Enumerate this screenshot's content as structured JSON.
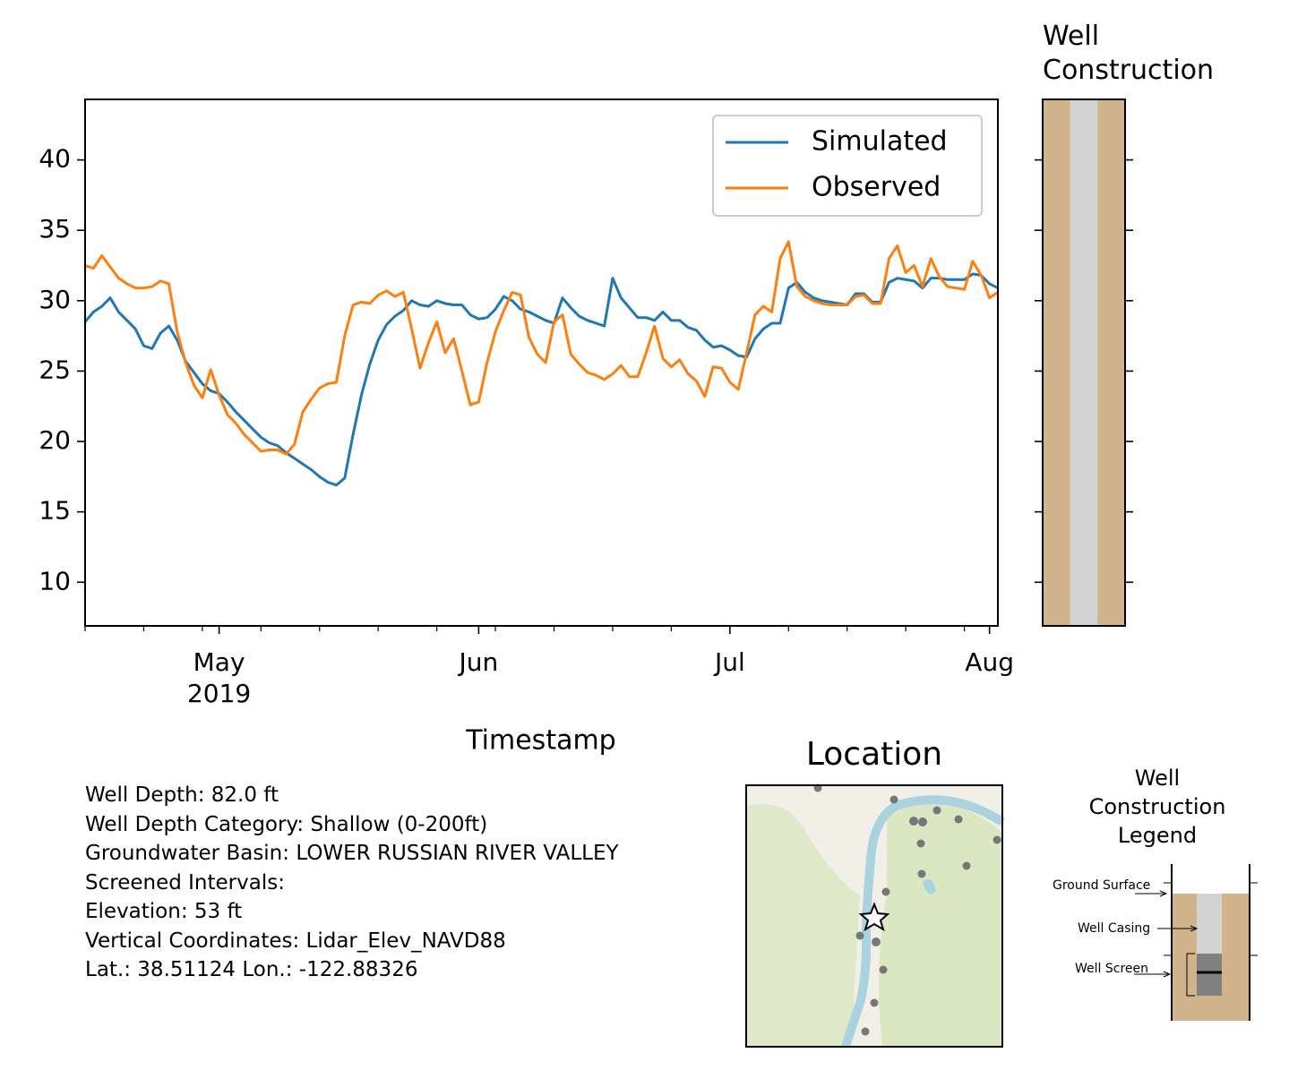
{
  "chart_data": [
    {
      "type": "line",
      "xlabel": "Timestamp",
      "x": [
        "2019-04-15",
        "2019-04-16",
        "2019-04-17",
        "2019-04-18",
        "2019-04-19",
        "2019-04-20",
        "2019-04-21",
        "2019-04-22",
        "2019-04-23",
        "2019-04-24",
        "2019-04-25",
        "2019-04-26",
        "2019-04-27",
        "2019-04-28",
        "2019-04-29",
        "2019-04-30",
        "2019-05-01",
        "2019-05-02",
        "2019-05-03",
        "2019-05-04",
        "2019-05-05",
        "2019-05-06",
        "2019-05-07",
        "2019-05-08",
        "2019-05-09",
        "2019-05-10",
        "2019-05-11",
        "2019-05-12",
        "2019-05-13",
        "2019-05-14",
        "2019-05-15",
        "2019-05-16",
        "2019-05-17",
        "2019-05-18",
        "2019-05-19",
        "2019-05-20",
        "2019-05-21",
        "2019-05-22",
        "2019-05-23",
        "2019-05-24",
        "2019-05-25",
        "2019-05-26",
        "2019-05-27",
        "2019-05-28",
        "2019-05-29",
        "2019-05-30",
        "2019-05-31",
        "2019-06-01",
        "2019-06-02",
        "2019-06-03",
        "2019-06-04",
        "2019-06-05",
        "2019-06-06",
        "2019-06-07",
        "2019-06-08",
        "2019-06-09",
        "2019-06-10",
        "2019-06-11",
        "2019-06-12",
        "2019-06-13",
        "2019-06-14",
        "2019-06-15",
        "2019-06-16",
        "2019-06-17",
        "2019-06-18",
        "2019-06-19",
        "2019-06-20",
        "2019-06-21",
        "2019-06-22",
        "2019-06-23",
        "2019-06-24",
        "2019-06-25",
        "2019-06-26",
        "2019-06-27",
        "2019-06-28",
        "2019-06-29",
        "2019-06-30",
        "2019-07-01",
        "2019-07-02",
        "2019-07-03",
        "2019-07-04",
        "2019-07-05",
        "2019-07-06",
        "2019-07-07",
        "2019-07-08",
        "2019-07-09",
        "2019-07-10",
        "2019-07-11",
        "2019-07-12",
        "2019-07-13",
        "2019-07-14",
        "2019-07-15",
        "2019-07-16",
        "2019-07-17",
        "2019-07-18",
        "2019-07-19",
        "2019-07-20",
        "2019-07-21",
        "2019-07-22",
        "2019-07-23",
        "2019-07-24",
        "2019-07-25",
        "2019-07-26",
        "2019-07-27",
        "2019-07-28",
        "2019-07-29",
        "2019-07-30",
        "2019-07-31",
        "2019-08-01",
        "2019-08-02"
      ],
      "series": [
        {
          "name": "Simulated",
          "color": "#1f77b4",
          "values": [
            28.5,
            29.2,
            29.6,
            30.2,
            29.2,
            28.6,
            28.0,
            26.8,
            26.6,
            27.7,
            28.2,
            27.2,
            25.7,
            24.9,
            24.1,
            23.6,
            23.4,
            22.8,
            22.1,
            21.5,
            20.9,
            20.3,
            19.9,
            19.7,
            19.2,
            18.8,
            18.4,
            18.0,
            17.5,
            17.1,
            16.9,
            17.4,
            20.5,
            23.3,
            25.5,
            27.2,
            28.3,
            28.9,
            29.3,
            30.0,
            29.7,
            29.6,
            30.0,
            29.8,
            29.7,
            29.7,
            29.0,
            28.7,
            28.8,
            29.4,
            30.3,
            30.0,
            29.4,
            29.2,
            28.9,
            28.6,
            28.4,
            30.2,
            29.5,
            28.9,
            28.6,
            28.4,
            28.2,
            31.6,
            30.2,
            29.5,
            28.8,
            28.8,
            28.6,
            29.2,
            28.6,
            28.6,
            28.1,
            27.9,
            27.2,
            26.7,
            26.8,
            26.5,
            26.1,
            26.0,
            27.3,
            28.0,
            28.4,
            28.4,
            30.9,
            31.3,
            30.6,
            30.2,
            30.0,
            29.9,
            29.8,
            29.7,
            30.5,
            30.5,
            29.9,
            29.9,
            31.3,
            31.6,
            31.5,
            31.4,
            30.9,
            31.6,
            31.6,
            31.5,
            31.5,
            31.5,
            31.9,
            31.8,
            31.2,
            30.9
          ]
        },
        {
          "name": "Observed",
          "color": "#ff7f0e",
          "values": [
            32.5,
            32.3,
            33.2,
            32.4,
            31.6,
            31.2,
            30.9,
            30.9,
            31.0,
            31.4,
            31.2,
            27.8,
            25.6,
            24.0,
            23.1,
            25.1,
            23.3,
            21.9,
            21.3,
            20.5,
            19.9,
            19.3,
            19.4,
            19.4,
            19.1,
            19.8,
            22.1,
            23.0,
            23.8,
            24.1,
            24.2,
            27.5,
            29.7,
            29.9,
            29.8,
            30.4,
            30.7,
            30.3,
            30.6,
            28.0,
            25.2,
            27.0,
            28.5,
            26.3,
            27.3,
            25.0,
            22.6,
            22.8,
            25.6,
            27.8,
            29.3,
            30.6,
            30.4,
            27.4,
            26.2,
            25.6,
            28.5,
            29.0,
            26.2,
            25.5,
            24.9,
            24.7,
            24.4,
            24.8,
            25.4,
            24.6,
            24.6,
            26.3,
            28.2,
            25.9,
            25.3,
            25.8,
            24.8,
            24.3,
            23.2,
            25.3,
            25.2,
            24.2,
            23.7,
            26.3,
            29.0,
            29.6,
            29.2,
            33.0,
            34.2,
            31.0,
            30.3,
            30.0,
            29.8,
            29.7,
            29.7,
            29.7,
            30.3,
            30.4,
            29.8,
            29.8,
            33.0,
            33.9,
            32.0,
            32.5,
            31.0,
            33.0,
            31.7,
            31.0,
            30.9,
            30.8,
            32.8,
            31.8,
            30.2,
            30.6
          ]
        }
      ],
      "xlim": [
        "2019-04-15",
        "2019-08-02"
      ],
      "xticks": [
        {
          "value": "2019-05-01",
          "label": "May\n2019"
        },
        {
          "value": "2019-06-01",
          "label": "Jun"
        },
        {
          "value": "2019-07-01",
          "label": "Jul"
        },
        {
          "value": "2019-08-01",
          "label": "Aug"
        }
      ],
      "xminorticks": [
        "2019-04-15",
        "2019-04-22",
        "2019-04-29",
        "2019-05-06",
        "2019-05-13",
        "2019-05-20",
        "2019-05-27",
        "2019-06-03",
        "2019-06-10",
        "2019-06-17",
        "2019-06-24",
        "2019-07-08",
        "2019-07-15",
        "2019-07-22",
        "2019-07-29"
      ],
      "ylim": [
        6.9,
        44.3
      ],
      "yticks": [
        10,
        15,
        20,
        25,
        30,
        35,
        40
      ],
      "legend": "upper right"
    },
    {
      "type": "well",
      "title": "Well Construction",
      "ylim": [
        6.9,
        44.3
      ],
      "yticks": [
        10,
        15,
        20,
        25,
        30,
        35,
        40
      ],
      "colors": {
        "ground": "#d2b48c",
        "casing": "#d3d3d3"
      }
    }
  ],
  "well_info": [
    "Well Depth: 82.0 ft",
    "Well Depth Category: Shallow (0-200ft)",
    "Groundwater Basin: LOWER RUSSIAN RIVER VALLEY",
    "Screened Intervals:",
    "Elevation: 53 ft",
    "Vertical Coordinates: Lidar_Elev_NAVD88",
    "Lat.: 38.51124 Lon.: -122.88326"
  ],
  "location": {
    "title": "Location"
  },
  "construction_legend": {
    "title": "Well Construction Legend",
    "labels": [
      "Ground Surface",
      "Well Casing",
      "Well Screen"
    ]
  }
}
